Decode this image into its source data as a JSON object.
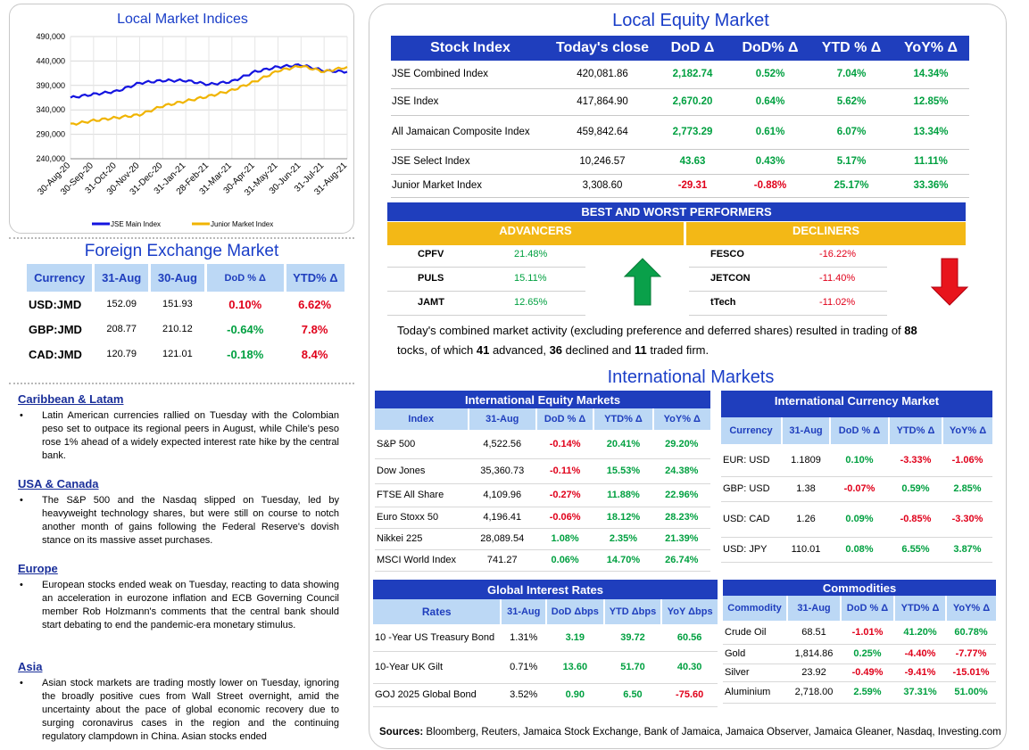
{
  "chart": {
    "title": "Local Market Indices",
    "y_ticks": [
      "490,000",
      "440,000",
      "390,000",
      "340,000",
      "290,000",
      "240,000"
    ],
    "x_ticks": [
      "30-Aug-20",
      "30-Sep-20",
      "31-Oct-20",
      "30-Nov-20",
      "31-Dec-20",
      "31-Jan-21",
      "28-Feb-21",
      "31-Mar-21",
      "30-Apr-21",
      "31-May-21",
      "30-Jun-21",
      "31-Jul-21",
      "31-Aug-21"
    ],
    "legend": [
      "JSE Main Index",
      "Junior Market Index"
    ],
    "colors": {
      "main": "#1414e0",
      "junior": "#f0b400"
    }
  },
  "chart_data": {
    "type": "line",
    "title": "Local Market Indices",
    "xlabel": "",
    "ylabel": "",
    "ylim": [
      240000,
      490000
    ],
    "categories": [
      "30-Aug-20",
      "30-Sep-20",
      "31-Oct-20",
      "30-Nov-20",
      "31-Dec-20",
      "31-Jan-21",
      "28-Feb-21",
      "31-Mar-21",
      "30-Apr-21",
      "31-May-21",
      "30-Jun-21",
      "31-Jul-21",
      "31-Aug-21"
    ],
    "series": [
      {
        "name": "JSE Main Index",
        "values": [
          365000,
          372000,
          378000,
          395000,
          400000,
          400000,
          392000,
          398000,
          418000,
          428000,
          432000,
          420000,
          418000
        ]
      },
      {
        "name": "Junior Market Index",
        "values": [
          310000,
          318000,
          324000,
          330000,
          348000,
          358000,
          368000,
          380000,
          398000,
          420000,
          430000,
          418000,
          428000
        ]
      }
    ],
    "legend": "bottom",
    "grid": true
  },
  "fx": {
    "title": "Foreign Exchange Market",
    "headers": [
      "Currency",
      "31-Aug",
      "30-Aug",
      "DoD % Δ",
      "YTD% Δ"
    ],
    "rows": [
      {
        "cur": "USD:JMD",
        "d1": "152.09",
        "d2": "151.93",
        "dod": "0.10%",
        "ytd": "6.62%",
        "dod_neg": true,
        "ytd_neg": true
      },
      {
        "cur": "GBP:JMD",
        "d1": "208.77",
        "d2": "210.12",
        "dod": "-0.64%",
        "ytd": "7.8%",
        "dod_neg": false,
        "ytd_neg": true
      },
      {
        "cur": "CAD:JMD",
        "d1": "120.79",
        "d2": "121.01",
        "dod": "-0.18%",
        "ytd": "8.4%",
        "dod_neg": false,
        "ytd_neg": true
      }
    ]
  },
  "news": [
    {
      "head": "Caribbean & Latam",
      "text": "Latin American currencies rallied on Tuesday with the Colombian peso set to outpace its regional peers in August, while Chile's peso rose 1% ahead of a widely expected interest rate hike by the central bank."
    },
    {
      "head": "USA & Canada",
      "text": "The S&P 500 and the Nasdaq slipped on Tuesday, led by heavyweight technology shares, but were still on course to notch another month of gains following the Federal Reserve's dovish stance on its massive asset purchases."
    },
    {
      "head": "Europe",
      "text": "European stocks ended weak on Tuesday, reacting to data showing an acceleration in eurozone inflation and ECB Governing Council member Rob Holzmann's comments that the central bank should start debating to end the pandemic-era monetary stimulus."
    },
    {
      "head": "Asia",
      "text": "Asian stock markets are trading mostly lower on Tuesday, ignoring the broadly positive cues from Wall Street overnight, amid the uncertainty about the pace of global economic recovery due to surging coronavirus cases in the region and the continuing regulatory clampdown in China. Asian stocks ended"
    }
  ],
  "equity": {
    "title": "Local Equity Market",
    "headers": [
      "Stock Index",
      "Today's close",
      "DoD  Δ",
      "DoD% Δ",
      "YTD % Δ",
      "YoY% Δ"
    ],
    "rows": [
      {
        "name": "JSE Combined Index",
        "close": "420,081.86",
        "dod": "2,182.74",
        "dodp": "0.52%",
        "ytd": "7.04%",
        "yoy": "14.34%"
      },
      {
        "name": "JSE Index",
        "close": "417,864.90",
        "dod": "2,670.20",
        "dodp": "0.64%",
        "ytd": "5.62%",
        "yoy": "12.85%"
      },
      {
        "name": "All Jamaican Composite Index",
        "close": "459,842.64",
        "dod": "2,773.29",
        "dodp": "0.61%",
        "ytd": "6.07%",
        "yoy": "13.34%"
      },
      {
        "name": "JSE Select Index",
        "close": "10,246.57",
        "dod": "43.63",
        "dodp": "0.43%",
        "ytd": "5.17%",
        "yoy": "11.11%"
      },
      {
        "name": "Junior Market Index",
        "close": "3,308.60",
        "dod": "-29.31",
        "dodp": "-0.88%",
        "ytd": "25.17%",
        "yoy": "33.36%"
      }
    ]
  },
  "bw": {
    "title": "BEST AND WORST PERFORMERS",
    "adv_label": "ADVANCERS",
    "dec_label": "DECLINERS",
    "advancers": [
      {
        "sym": "CPFV",
        "val": "21.48%"
      },
      {
        "sym": "PULS",
        "val": "15.11%"
      },
      {
        "sym": "JAMT",
        "val": "12.65%"
      }
    ],
    "decliners": [
      {
        "sym": "FESCO",
        "val": "-16.22%"
      },
      {
        "sym": "JETCON",
        "val": "-11.40%"
      },
      {
        "sym": "tTech",
        "val": "-11.02%"
      }
    ]
  },
  "summary": {
    "p1": "Today's combined market activity (excluding preference and deferred shares) resulted in trading of ",
    "n_total": "88",
    "p2": "tocks, of which ",
    "n_adv": "41",
    "p3": " advanced, ",
    "n_dec": "36",
    "p4": " declined and ",
    "n_firm": "11",
    "p5": " traded firm."
  },
  "intl": {
    "title": "International Markets",
    "equity": {
      "caption": "International Equity Markets",
      "headers": [
        "Index",
        "31-Aug",
        "DoD % Δ",
        "YTD% Δ",
        "YoY% Δ"
      ],
      "rows": [
        {
          "name": "S&P 500",
          "v": "4,522.56",
          "dod": "-0.14%",
          "ytd": "20.41%",
          "yoy": "29.20%"
        },
        {
          "name": "Dow Jones",
          "v": "35,360.73",
          "dod": "-0.11%",
          "ytd": "15.53%",
          "yoy": "24.38%"
        },
        {
          "name": "FTSE All Share",
          "v": "4,109.96",
          "dod": "-0.27%",
          "ytd": "11.88%",
          "yoy": "22.96%"
        },
        {
          "name": "Euro Stoxx 50",
          "v": "4,196.41",
          "dod": "-0.06%",
          "ytd": "18.12%",
          "yoy": "28.23%"
        },
        {
          "name": "Nikkei 225",
          "v": "28,089.54",
          "dod": "1.08%",
          "ytd": "2.35%",
          "yoy": "21.39%"
        },
        {
          "name": "MSCI World Index",
          "v": "741.27",
          "dod": "0.06%",
          "ytd": "14.70%",
          "yoy": "26.74%"
        }
      ]
    },
    "currency": {
      "caption": "International Currency Market",
      "headers": [
        "Currency",
        "31-Aug",
        "DoD % Δ",
        "YTD% Δ",
        "YoY% Δ"
      ],
      "rows": [
        {
          "name": "EUR: USD",
          "v": "1.1809",
          "dod": "0.10%",
          "ytd": "-3.33%",
          "yoy": "-1.06%"
        },
        {
          "name": "GBP: USD",
          "v": "1.38",
          "dod": "-0.07%",
          "ytd": "0.59%",
          "yoy": "2.85%"
        },
        {
          "name": "USD: CAD",
          "v": "1.26",
          "dod": "0.09%",
          "ytd": "-0.85%",
          "yoy": "-3.30%"
        },
        {
          "name": "USD: JPY",
          "v": "110.01",
          "dod": "0.08%",
          "ytd": "6.55%",
          "yoy": "3.87%"
        }
      ]
    },
    "rates": {
      "caption": "Global Interest Rates",
      "headers": [
        "Rates",
        "31-Aug",
        "DoD Δbps",
        "YTD Δbps",
        "YoY Δbps"
      ],
      "rows": [
        {
          "name": "10 -Year US Treasury Bond",
          "v": "1.31%",
          "dod": "3.19",
          "ytd": "39.72",
          "yoy": "60.56"
        },
        {
          "name": "10-Year UK Gilt",
          "v": "0.71%",
          "dod": "13.60",
          "ytd": "51.70",
          "yoy": "40.30"
        },
        {
          "name": "GOJ 2025 Global Bond",
          "v": "3.52%",
          "dod": "0.90",
          "ytd": "6.50",
          "yoy": "-75.60"
        }
      ]
    },
    "commodities": {
      "caption": "Commodities",
      "headers": [
        "Commodity",
        "31-Aug",
        "DoD % Δ",
        "YTD% Δ",
        "YoY% Δ"
      ],
      "rows": [
        {
          "name": "Crude Oil",
          "v": "68.51",
          "dod": "-1.01%",
          "ytd": "41.20%",
          "yoy": "60.78%"
        },
        {
          "name": "Gold",
          "v": "1,814.86",
          "dod": "0.25%",
          "ytd": "-4.40%",
          "yoy": "-7.77%"
        },
        {
          "name": "Silver",
          "v": "23.92",
          "dod": "-0.49%",
          "ytd": "-9.41%",
          "yoy": "-15.01%"
        },
        {
          "name": "Aluminium",
          "v": "2,718.00",
          "dod": "2.59%",
          "ytd": "37.31%",
          "yoy": "51.00%"
        }
      ]
    }
  },
  "sources": {
    "label": "Sources:",
    "text": " Bloomberg, Reuters, Jamaica Stock Exchange, Bank of Jamaica, Jamaica Observer, Jamaica Gleaner, Nasdaq, Investing.com"
  }
}
